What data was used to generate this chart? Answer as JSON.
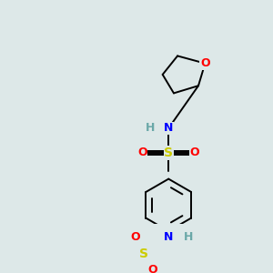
{
  "background_color": "#dde8e8",
  "bond_color": "#000000",
  "colors": {
    "C": "#000000",
    "H": "#6aa8a8",
    "N": "#0000ff",
    "O": "#ff0000",
    "S": "#cccc00"
  },
  "figsize": [
    3.0,
    3.0
  ],
  "dpi": 100,
  "xlim": [
    0,
    300
  ],
  "ylim": [
    0,
    300
  ]
}
